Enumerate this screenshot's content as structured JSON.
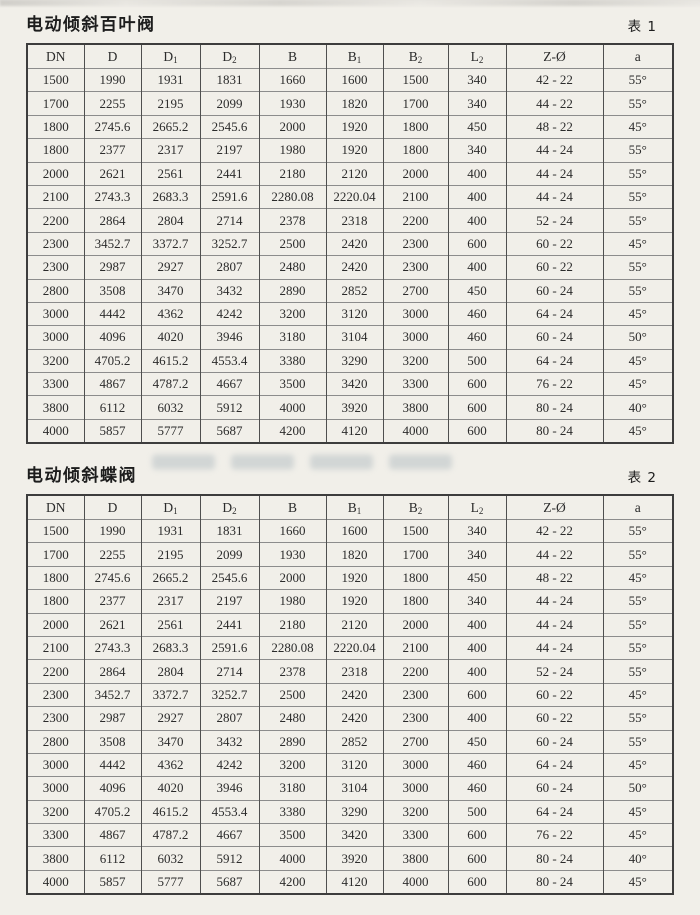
{
  "colors": {
    "paper": "#f1efe9",
    "text": "#2b2b2b",
    "border_dark": "#4f4f4f",
    "border_light": "#8c8c8c"
  },
  "tables": [
    {
      "title": "电动倾斜百叶阀",
      "tag": "表 1",
      "columns": [
        {
          "base": "DN",
          "sub": ""
        },
        {
          "base": "D",
          "sub": ""
        },
        {
          "base": "D",
          "sub": "1"
        },
        {
          "base": "D",
          "sub": "2"
        },
        {
          "base": "B",
          "sub": ""
        },
        {
          "base": "B",
          "sub": "1"
        },
        {
          "base": "B",
          "sub": "2"
        },
        {
          "base": "L",
          "sub": "2"
        },
        {
          "base": "Z-Ø",
          "sub": ""
        },
        {
          "base": "a",
          "sub": ""
        }
      ],
      "rows": [
        [
          "1500",
          "1990",
          "1931",
          "1831",
          "1660",
          "1600",
          "1500",
          "340",
          "42 - 22",
          "55°"
        ],
        [
          "1700",
          "2255",
          "2195",
          "2099",
          "1930",
          "1820",
          "1700",
          "340",
          "44 - 22",
          "55°"
        ],
        [
          "1800",
          "2745.6",
          "2665.2",
          "2545.6",
          "2000",
          "1920",
          "1800",
          "450",
          "48 - 22",
          "45°"
        ],
        [
          "1800",
          "2377",
          "2317",
          "2197",
          "1980",
          "1920",
          "1800",
          "340",
          "44 - 24",
          "55°"
        ],
        [
          "2000",
          "2621",
          "2561",
          "2441",
          "2180",
          "2120",
          "2000",
          "400",
          "44 - 24",
          "55°"
        ],
        [
          "2100",
          "2743.3",
          "2683.3",
          "2591.6",
          "2280.08",
          "2220.04",
          "2100",
          "400",
          "44 - 24",
          "55°"
        ],
        [
          "2200",
          "2864",
          "2804",
          "2714",
          "2378",
          "2318",
          "2200",
          "400",
          "52 - 24",
          "55°"
        ],
        [
          "2300",
          "3452.7",
          "3372.7",
          "3252.7",
          "2500",
          "2420",
          "2300",
          "600",
          "60 - 22",
          "45°"
        ],
        [
          "2300",
          "2987",
          "2927",
          "2807",
          "2480",
          "2420",
          "2300",
          "400",
          "60 - 22",
          "55°"
        ],
        [
          "2800",
          "3508",
          "3470",
          "3432",
          "2890",
          "2852",
          "2700",
          "450",
          "60 - 24",
          "55°"
        ],
        [
          "3000",
          "4442",
          "4362",
          "4242",
          "3200",
          "3120",
          "3000",
          "460",
          "64 - 24",
          "45°"
        ],
        [
          "3000",
          "4096",
          "4020",
          "3946",
          "3180",
          "3104",
          "3000",
          "460",
          "60 - 24",
          "50°"
        ],
        [
          "3200",
          "4705.2",
          "4615.2",
          "4553.4",
          "3380",
          "3290",
          "3200",
          "500",
          "64 - 24",
          "45°"
        ],
        [
          "3300",
          "4867",
          "4787.2",
          "4667",
          "3500",
          "3420",
          "3300",
          "600",
          "76 - 22",
          "45°"
        ],
        [
          "3800",
          "6112",
          "6032",
          "5912",
          "4000",
          "3920",
          "3800",
          "600",
          "80 - 24",
          "40°"
        ],
        [
          "4000",
          "5857",
          "5777",
          "5687",
          "4200",
          "4120",
          "4000",
          "600",
          "80 - 24",
          "45°"
        ]
      ]
    },
    {
      "title": "电动倾斜蝶阀",
      "tag": "表 2",
      "columns": [
        {
          "base": "DN",
          "sub": ""
        },
        {
          "base": "D",
          "sub": ""
        },
        {
          "base": "D",
          "sub": "1"
        },
        {
          "base": "D",
          "sub": "2"
        },
        {
          "base": "B",
          "sub": ""
        },
        {
          "base": "B",
          "sub": "1"
        },
        {
          "base": "B",
          "sub": "2"
        },
        {
          "base": "L",
          "sub": "2"
        },
        {
          "base": "Z-Ø",
          "sub": ""
        },
        {
          "base": "a",
          "sub": ""
        }
      ],
      "rows": [
        [
          "1500",
          "1990",
          "1931",
          "1831",
          "1660",
          "1600",
          "1500",
          "340",
          "42 - 22",
          "55°"
        ],
        [
          "1700",
          "2255",
          "2195",
          "2099",
          "1930",
          "1820",
          "1700",
          "340",
          "44 - 22",
          "55°"
        ],
        [
          "1800",
          "2745.6",
          "2665.2",
          "2545.6",
          "2000",
          "1920",
          "1800",
          "450",
          "48 - 22",
          "45°"
        ],
        [
          "1800",
          "2377",
          "2317",
          "2197",
          "1980",
          "1920",
          "1800",
          "340",
          "44 - 24",
          "55°"
        ],
        [
          "2000",
          "2621",
          "2561",
          "2441",
          "2180",
          "2120",
          "2000",
          "400",
          "44 - 24",
          "55°"
        ],
        [
          "2100",
          "2743.3",
          "2683.3",
          "2591.6",
          "2280.08",
          "2220.04",
          "2100",
          "400",
          "44 - 24",
          "55°"
        ],
        [
          "2200",
          "2864",
          "2804",
          "2714",
          "2378",
          "2318",
          "2200",
          "400",
          "52 - 24",
          "55°"
        ],
        [
          "2300",
          "3452.7",
          "3372.7",
          "3252.7",
          "2500",
          "2420",
          "2300",
          "600",
          "60 - 22",
          "45°"
        ],
        [
          "2300",
          "2987",
          "2927",
          "2807",
          "2480",
          "2420",
          "2300",
          "400",
          "60 - 22",
          "55°"
        ],
        [
          "2800",
          "3508",
          "3470",
          "3432",
          "2890",
          "2852",
          "2700",
          "450",
          "60 - 24",
          "55°"
        ],
        [
          "3000",
          "4442",
          "4362",
          "4242",
          "3200",
          "3120",
          "3000",
          "460",
          "64 - 24",
          "45°"
        ],
        [
          "3000",
          "4096",
          "4020",
          "3946",
          "3180",
          "3104",
          "3000",
          "460",
          "60 - 24",
          "50°"
        ],
        [
          "3200",
          "4705.2",
          "4615.2",
          "4553.4",
          "3380",
          "3290",
          "3200",
          "500",
          "64 - 24",
          "45°"
        ],
        [
          "3300",
          "4867",
          "4787.2",
          "4667",
          "3500",
          "3420",
          "3300",
          "600",
          "76 - 22",
          "45°"
        ],
        [
          "3800",
          "6112",
          "6032",
          "5912",
          "4000",
          "3920",
          "3800",
          "600",
          "80 - 24",
          "40°"
        ],
        [
          "4000",
          "5857",
          "5777",
          "5687",
          "4200",
          "4120",
          "4000",
          "600",
          "80 - 24",
          "45°"
        ]
      ]
    }
  ]
}
